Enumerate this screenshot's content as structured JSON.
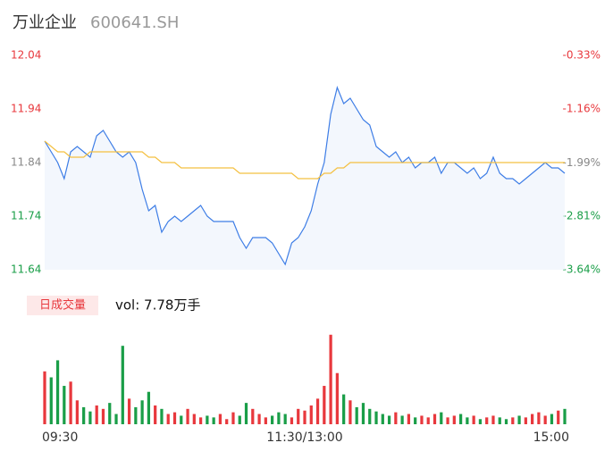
{
  "chart_data": {
    "type": "intraday",
    "title": "万业企业",
    "subtitle": "600641.SH",
    "legend": "日成交量",
    "volume_label": "vol: 7.78万手",
    "xlim": [
      0,
      80
    ],
    "xticks": [
      {
        "value": 0,
        "label": "09:30"
      },
      {
        "value": 40,
        "label": "11:30/13:00"
      },
      {
        "value": 80,
        "label": "15:00"
      }
    ],
    "ylim": [
      11.64,
      12.04
    ],
    "yticks": [
      11.64,
      11.74,
      11.84,
      11.94,
      12.04
    ],
    "ytick_colors": [
      "#1a9e48",
      "#1a9e48",
      "#888888",
      "#e8383d",
      "#e8383d"
    ],
    "y2lim": [
      -3.64,
      -0.33
    ],
    "y2ticks": [
      {
        "value": -3.64,
        "label": "-3.64%"
      },
      {
        "value": -2.81,
        "label": "-2.81%"
      },
      {
        "value": -1.99,
        "label": "-1.99%"
      },
      {
        "value": -1.16,
        "label": "-1.16%"
      },
      {
        "value": -0.33,
        "label": "-0.33%"
      }
    ],
    "volume_ylim": [
      0,
      110
    ],
    "up_color": "#e8383d",
    "down_color": "#1a9e48",
    "series": [
      {
        "name": "price",
        "color": "#3d7de6",
        "values": [
          11.88,
          11.86,
          11.84,
          11.81,
          11.86,
          11.87,
          11.86,
          11.85,
          11.89,
          11.9,
          11.88,
          11.86,
          11.85,
          11.86,
          11.84,
          11.79,
          11.75,
          11.76,
          11.71,
          11.73,
          11.74,
          11.73,
          11.74,
          11.75,
          11.76,
          11.74,
          11.73,
          11.73,
          11.73,
          11.73,
          11.7,
          11.68,
          11.7,
          11.7,
          11.7,
          11.69,
          11.67,
          11.65,
          11.69,
          11.7,
          11.72,
          11.75,
          11.8,
          11.84,
          11.93,
          11.98,
          11.95,
          11.96,
          11.94,
          11.92,
          11.91,
          11.87,
          11.86,
          11.85,
          11.86,
          11.84,
          11.85,
          11.83,
          11.84,
          11.84,
          11.85,
          11.82,
          11.84,
          11.84,
          11.83,
          11.82,
          11.83,
          11.81,
          11.82,
          11.85,
          11.82,
          11.81,
          11.81,
          11.8,
          11.81,
          11.82,
          11.83,
          11.84,
          11.83,
          11.83,
          11.82
        ]
      },
      {
        "name": "average",
        "color": "#f4c040",
        "values": [
          11.88,
          11.87,
          11.86,
          11.86,
          11.85,
          11.85,
          11.85,
          11.86,
          11.86,
          11.86,
          11.86,
          11.86,
          11.86,
          11.86,
          11.86,
          11.86,
          11.85,
          11.85,
          11.84,
          11.84,
          11.84,
          11.83,
          11.83,
          11.83,
          11.83,
          11.83,
          11.83,
          11.83,
          11.83,
          11.83,
          11.82,
          11.82,
          11.82,
          11.82,
          11.82,
          11.82,
          11.82,
          11.82,
          11.82,
          11.81,
          11.81,
          11.81,
          11.81,
          11.82,
          11.82,
          11.83,
          11.83,
          11.84,
          11.84,
          11.84,
          11.84,
          11.84,
          11.84,
          11.84,
          11.84,
          11.84,
          11.84,
          11.84,
          11.84,
          11.84,
          11.84,
          11.84,
          11.84,
          11.84,
          11.84,
          11.84,
          11.84,
          11.84,
          11.84,
          11.84,
          11.84,
          11.84,
          11.84,
          11.84,
          11.84,
          11.84,
          11.84,
          11.84,
          11.84,
          11.84,
          11.84
        ]
      }
    ],
    "volume": [
      62,
      55,
      75,
      45,
      50,
      28,
      20,
      15,
      22,
      18,
      25,
      12,
      92,
      30,
      20,
      28,
      38,
      22,
      18,
      12,
      14,
      10,
      18,
      12,
      8,
      10,
      8,
      12,
      6,
      14,
      10,
      25,
      18,
      12,
      8,
      10,
      14,
      12,
      8,
      18,
      16,
      22,
      30,
      45,
      105,
      60,
      35,
      28,
      20,
      25,
      18,
      15,
      12,
      10,
      14,
      10,
      12,
      8,
      10,
      8,
      12,
      14,
      8,
      10,
      12,
      8,
      10,
      6,
      8,
      10,
      8,
      6,
      8,
      10,
      8,
      12,
      14,
      10,
      12,
      16,
      18
    ]
  }
}
